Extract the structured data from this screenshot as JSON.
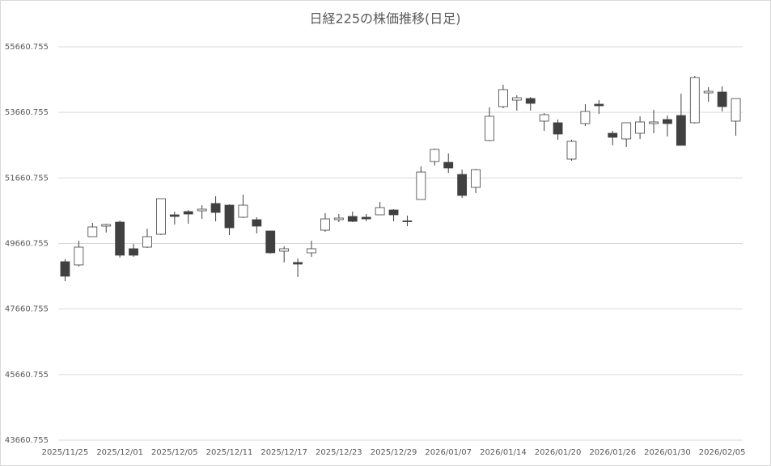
{
  "chart_data": {
    "type": "candlestick",
    "title": "日経225の株価推移(日足)",
    "categories": [
      "2025/11/25",
      null,
      null,
      null,
      "2025/12/01",
      null,
      null,
      null,
      "2025/12/05",
      null,
      null,
      null,
      "2025/12/11",
      null,
      null,
      null,
      "2025/12/17",
      null,
      null,
      null,
      "2025/12/23",
      null,
      null,
      null,
      "2025/12/29",
      null,
      null,
      null,
      "2026/01/07",
      null,
      null,
      null,
      "2026/01/14",
      null,
      null,
      null,
      "2026/01/20",
      null,
      null,
      null,
      "2026/01/26",
      null,
      null,
      null,
      "2026/01/30",
      null,
      null,
      null,
      "2026/02/05",
      null
    ],
    "open": [
      49106,
      49008,
      49870,
      50191,
      50314,
      49501,
      49550,
      49944,
      50536,
      50634,
      50659,
      50881,
      50831,
      50462,
      50388,
      50043,
      49427,
      49082,
      49377,
      50067,
      50388,
      50486,
      50462,
      50536,
      50683,
      50351,
      51004,
      52162,
      52137,
      51768,
      51373,
      52802,
      53837,
      54034,
      54084,
      53394,
      53345,
      52236,
      53320,
      53911,
      53024,
      52852,
      53024,
      53320,
      53443,
      53566,
      53345,
      54256,
      54281,
      53394
    ],
    "high": [
      49180,
      49747,
      50289,
      50265,
      50363,
      49649,
      50117,
      51028,
      50634,
      50683,
      50831,
      51102,
      50856,
      51152,
      50462,
      50043,
      49575,
      49205,
      49747,
      50585,
      50560,
      50634,
      50560,
      50930,
      50708,
      50511,
      52014,
      52556,
      52408,
      51915,
      51940,
      53813,
      54503,
      54182,
      54133,
      53640,
      53443,
      52827,
      53911,
      54034,
      53098,
      53345,
      53542,
      53739,
      53566,
      54232,
      54774,
      54429,
      54453,
      54084
    ],
    "low": [
      48515,
      48959,
      49870,
      49993,
      49230,
      49254,
      49525,
      49920,
      50240,
      50265,
      50412,
      50338,
      49920,
      50437,
      49969,
      49353,
      49082,
      48638,
      49254,
      50018,
      50314,
      50314,
      50338,
      50536,
      50338,
      50191,
      51004,
      52039,
      51817,
      51053,
      51201,
      52778,
      53788,
      53714,
      53714,
      53098,
      52827,
      52186,
      53246,
      53616,
      52655,
      52605,
      52852,
      53024,
      52926,
      52655,
      53320,
      53985,
      53689,
      52950
    ],
    "close": [
      48663,
      49550,
      50166,
      50240,
      49304,
      49304,
      49870,
      51028,
      50486,
      50560,
      50708,
      50609,
      50141,
      50831,
      50191,
      49377,
      49501,
      49033,
      49501,
      50412,
      50437,
      50338,
      50412,
      50757,
      50536,
      50326,
      51841,
      52531,
      51965,
      51127,
      51915,
      53542,
      54355,
      54108,
      53936,
      53591,
      53000,
      52778,
      53689,
      53862,
      52901,
      53345,
      53369,
      53369,
      53320,
      52655,
      54724,
      54305,
      53837,
      54084
    ],
    "up_color": "#ffffff",
    "down_color": "#404040",
    "line_color": "#404040",
    "ylim": [
      43660.755,
      55660.755
    ],
    "yticks": [
      43660.755,
      45660.755,
      47660.755,
      49660.755,
      51660.755,
      53660.755,
      55660.755
    ],
    "grid": true
  }
}
